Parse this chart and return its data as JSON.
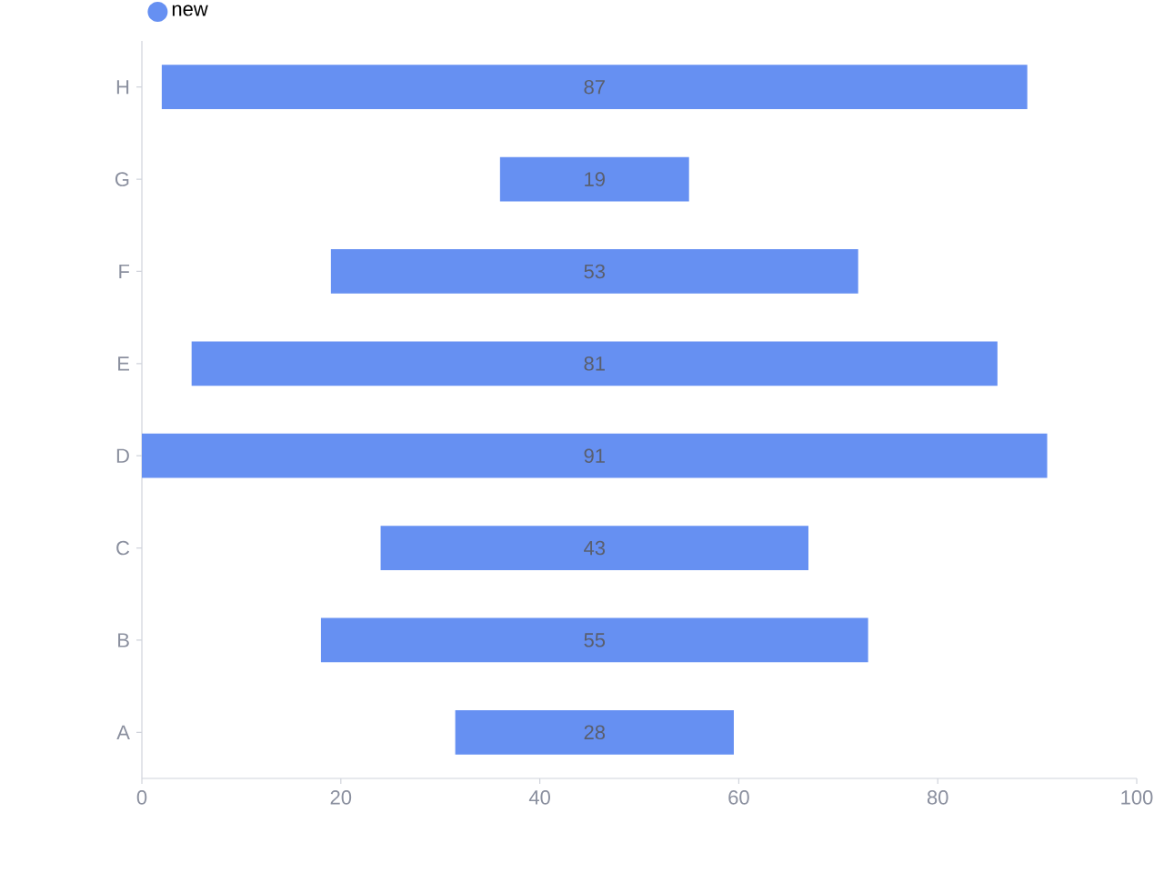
{
  "chart_data": {
    "type": "bar",
    "orientation": "horizontal",
    "categories": [
      "H",
      "G",
      "F",
      "E",
      "D",
      "C",
      "B",
      "A"
    ],
    "series": [
      {
        "name": "new",
        "color": "#6690f2",
        "values": [
          87,
          19,
          53,
          81,
          91,
          43,
          55,
          28
        ],
        "base": [
          2,
          36,
          19,
          5,
          0,
          24,
          18,
          31.5
        ]
      }
    ],
    "xlim": [
      0,
      100
    ],
    "xticks": [
      0,
      20,
      40,
      60,
      80,
      100
    ],
    "data_labels": true,
    "legend": "top left",
    "grid": false
  }
}
